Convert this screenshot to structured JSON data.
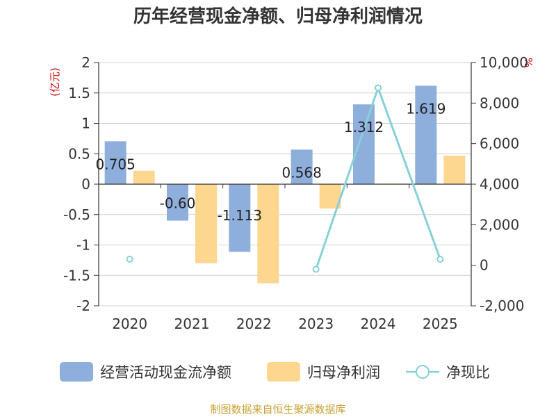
{
  "chart_data": {
    "type": "bar",
    "title": "历年经营现金净额、归母净利润情况",
    "categories": [
      "2020",
      "2021",
      "2022",
      "2023",
      "2024",
      "2025"
    ],
    "series": [
      {
        "name": "经营活动现金流净额",
        "type": "bar",
        "axis": "left",
        "color": "#8eaedc",
        "values": [
          0.705,
          -0.6,
          -1.113,
          0.568,
          1.312,
          1.619
        ]
      },
      {
        "name": "归母净利润",
        "type": "bar",
        "axis": "left",
        "color": "#fdd68f",
        "values": [
          0.22,
          -1.3,
          -1.63,
          -0.4,
          0.01,
          0.47
        ]
      },
      {
        "name": "净现比",
        "type": "line",
        "axis": "right",
        "color": "#86d0d8",
        "values": [
          300,
          null,
          null,
          -200,
          8750,
          300
        ]
      }
    ],
    "data_labels": [
      "0.705",
      "-0.60",
      "-1.113",
      "0.568",
      "1.312",
      "1.619"
    ],
    "left_axis": {
      "unit": "(亿元)",
      "ylim": [
        -2,
        2
      ],
      "ticks": [
        2,
        1.5,
        1,
        0.5,
        0,
        -0.5,
        -1,
        -1.5,
        -2
      ],
      "tick_labels": [
        "2",
        "1.5",
        "1",
        "0.5",
        "0",
        "-0.5",
        "-1",
        "-1.5",
        "-2"
      ]
    },
    "right_axis": {
      "unit": "%",
      "ylim": [
        -2000,
        10000
      ],
      "ticks": [
        10000,
        8000,
        6000,
        4000,
        2000,
        0,
        -2000
      ],
      "tick_labels": [
        "10,000",
        "8,000",
        "6,000",
        "4,000",
        "2,000",
        "0",
        "-2,000"
      ]
    },
    "grid": true,
    "legend": {
      "position": "bottom"
    },
    "source": "制图数据来自恒生聚源数据库"
  }
}
